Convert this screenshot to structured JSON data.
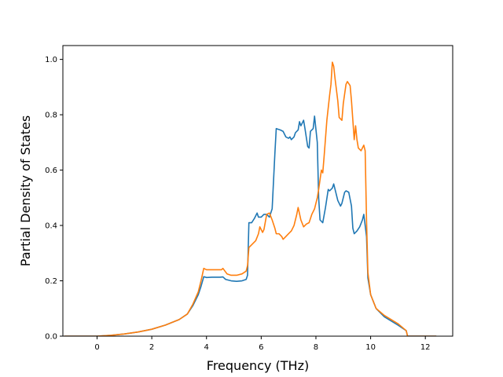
{
  "chart_data": {
    "type": "line",
    "title": "",
    "xlabel": "Frequency (THz)",
    "ylabel": "Partial Density of States",
    "xlim": [
      -1.25,
      13.0
    ],
    "ylim": [
      0.0,
      1.05
    ],
    "xticks": [
      0,
      2,
      4,
      6,
      8,
      10,
      12
    ],
    "yticks": [
      0.0,
      0.2,
      0.4,
      0.6,
      0.8,
      1.0
    ],
    "xtick_labels": [
      "0",
      "2",
      "4",
      "6",
      "8",
      "10",
      "12"
    ],
    "ytick_labels": [
      "0.0",
      "0.2",
      "0.4",
      "0.6",
      "0.8",
      "1.0"
    ],
    "grid": false,
    "legend": "none",
    "series": [
      {
        "color": "#1f77b4",
        "points": [
          [
            -1.2,
            0
          ],
          [
            0,
            0
          ],
          [
            0.5,
            0.003
          ],
          [
            1,
            0.008
          ],
          [
            1.5,
            0.015
          ],
          [
            2,
            0.025
          ],
          [
            2.5,
            0.04
          ],
          [
            3,
            0.06
          ],
          [
            3.3,
            0.08
          ],
          [
            3.5,
            0.11
          ],
          [
            3.7,
            0.15
          ],
          [
            3.8,
            0.18
          ],
          [
            3.9,
            0.215
          ],
          [
            4.0,
            0.212
          ],
          [
            4.2,
            0.213
          ],
          [
            4.5,
            0.213
          ],
          [
            4.6,
            0.214
          ],
          [
            4.7,
            0.205
          ],
          [
            4.9,
            0.2
          ],
          [
            5.1,
            0.198
          ],
          [
            5.3,
            0.2
          ],
          [
            5.45,
            0.205
          ],
          [
            5.5,
            0.22
          ],
          [
            5.55,
            0.41
          ],
          [
            5.65,
            0.41
          ],
          [
            5.75,
            0.425
          ],
          [
            5.85,
            0.445
          ],
          [
            5.9,
            0.43
          ],
          [
            6.0,
            0.43
          ],
          [
            6.1,
            0.44
          ],
          [
            6.2,
            0.44
          ],
          [
            6.3,
            0.43
          ],
          [
            6.4,
            0.46
          ],
          [
            6.5,
            0.66
          ],
          [
            6.55,
            0.75
          ],
          [
            6.7,
            0.745
          ],
          [
            6.8,
            0.74
          ],
          [
            6.9,
            0.72
          ],
          [
            7.0,
            0.715
          ],
          [
            7.05,
            0.72
          ],
          [
            7.1,
            0.71
          ],
          [
            7.2,
            0.72
          ],
          [
            7.25,
            0.735
          ],
          [
            7.35,
            0.745
          ],
          [
            7.4,
            0.775
          ],
          [
            7.45,
            0.76
          ],
          [
            7.5,
            0.77
          ],
          [
            7.55,
            0.78
          ],
          [
            7.6,
            0.75
          ],
          [
            7.7,
            0.685
          ],
          [
            7.75,
            0.68
          ],
          [
            7.8,
            0.74
          ],
          [
            7.9,
            0.75
          ],
          [
            7.95,
            0.795
          ],
          [
            8.05,
            0.7
          ],
          [
            8.1,
            0.5
          ],
          [
            8.15,
            0.42
          ],
          [
            8.25,
            0.41
          ],
          [
            8.35,
            0.465
          ],
          [
            8.45,
            0.53
          ],
          [
            8.5,
            0.525
          ],
          [
            8.6,
            0.535
          ],
          [
            8.65,
            0.55
          ],
          [
            8.7,
            0.53
          ],
          [
            8.8,
            0.49
          ],
          [
            8.9,
            0.47
          ],
          [
            8.95,
            0.48
          ],
          [
            9.05,
            0.52
          ],
          [
            9.1,
            0.525
          ],
          [
            9.2,
            0.52
          ],
          [
            9.3,
            0.47
          ],
          [
            9.35,
            0.39
          ],
          [
            9.4,
            0.37
          ],
          [
            9.5,
            0.38
          ],
          [
            9.6,
            0.395
          ],
          [
            9.7,
            0.42
          ],
          [
            9.75,
            0.44
          ],
          [
            9.85,
            0.36
          ],
          [
            9.9,
            0.21
          ],
          [
            10.0,
            0.15
          ],
          [
            10.2,
            0.1
          ],
          [
            10.5,
            0.07
          ],
          [
            11.0,
            0.04
          ],
          [
            11.3,
            0.02
          ],
          [
            11.35,
            0.0
          ],
          [
            12.4,
            0.0
          ]
        ]
      },
      {
        "color": "#ff7f0e",
        "points": [
          [
            -1.2,
            0
          ],
          [
            0,
            0
          ],
          [
            0.5,
            0.003
          ],
          [
            1,
            0.008
          ],
          [
            1.5,
            0.015
          ],
          [
            2,
            0.025
          ],
          [
            2.5,
            0.04
          ],
          [
            3,
            0.06
          ],
          [
            3.3,
            0.08
          ],
          [
            3.5,
            0.115
          ],
          [
            3.7,
            0.16
          ],
          [
            3.8,
            0.2
          ],
          [
            3.9,
            0.245
          ],
          [
            4.0,
            0.24
          ],
          [
            4.3,
            0.24
          ],
          [
            4.55,
            0.24
          ],
          [
            4.6,
            0.245
          ],
          [
            4.75,
            0.225
          ],
          [
            4.9,
            0.22
          ],
          [
            5.1,
            0.22
          ],
          [
            5.3,
            0.225
          ],
          [
            5.45,
            0.235
          ],
          [
            5.5,
            0.255
          ],
          [
            5.55,
            0.32
          ],
          [
            5.7,
            0.335
          ],
          [
            5.8,
            0.345
          ],
          [
            5.9,
            0.37
          ],
          [
            5.95,
            0.395
          ],
          [
            6.05,
            0.375
          ],
          [
            6.1,
            0.385
          ],
          [
            6.2,
            0.44
          ],
          [
            6.3,
            0.445
          ],
          [
            6.4,
            0.42
          ],
          [
            6.5,
            0.39
          ],
          [
            6.55,
            0.37
          ],
          [
            6.65,
            0.37
          ],
          [
            6.75,
            0.36
          ],
          [
            6.8,
            0.35
          ],
          [
            6.9,
            0.36
          ],
          [
            7.0,
            0.37
          ],
          [
            7.1,
            0.38
          ],
          [
            7.2,
            0.4
          ],
          [
            7.3,
            0.44
          ],
          [
            7.35,
            0.465
          ],
          [
            7.45,
            0.42
          ],
          [
            7.55,
            0.395
          ],
          [
            7.65,
            0.405
          ],
          [
            7.75,
            0.41
          ],
          [
            7.85,
            0.44
          ],
          [
            7.95,
            0.46
          ],
          [
            8.0,
            0.48
          ],
          [
            8.05,
            0.5
          ],
          [
            8.1,
            0.53
          ],
          [
            8.2,
            0.6
          ],
          [
            8.25,
            0.59
          ],
          [
            8.3,
            0.65
          ],
          [
            8.4,
            0.78
          ],
          [
            8.5,
            0.87
          ],
          [
            8.55,
            0.91
          ],
          [
            8.6,
            0.99
          ],
          [
            8.65,
            0.975
          ],
          [
            8.7,
            0.93
          ],
          [
            8.8,
            0.85
          ],
          [
            8.85,
            0.79
          ],
          [
            8.95,
            0.78
          ],
          [
            9.0,
            0.84
          ],
          [
            9.1,
            0.91
          ],
          [
            9.15,
            0.92
          ],
          [
            9.25,
            0.905
          ],
          [
            9.3,
            0.85
          ],
          [
            9.4,
            0.71
          ],
          [
            9.45,
            0.76
          ],
          [
            9.5,
            0.71
          ],
          [
            9.55,
            0.68
          ],
          [
            9.65,
            0.67
          ],
          [
            9.75,
            0.69
          ],
          [
            9.8,
            0.67
          ],
          [
            9.85,
            0.42
          ],
          [
            9.9,
            0.23
          ],
          [
            10.0,
            0.15
          ],
          [
            10.2,
            0.1
          ],
          [
            10.5,
            0.075
          ],
          [
            11.0,
            0.045
          ],
          [
            11.3,
            0.02
          ],
          [
            11.35,
            0.0
          ],
          [
            12.4,
            0.0
          ]
        ]
      }
    ]
  }
}
